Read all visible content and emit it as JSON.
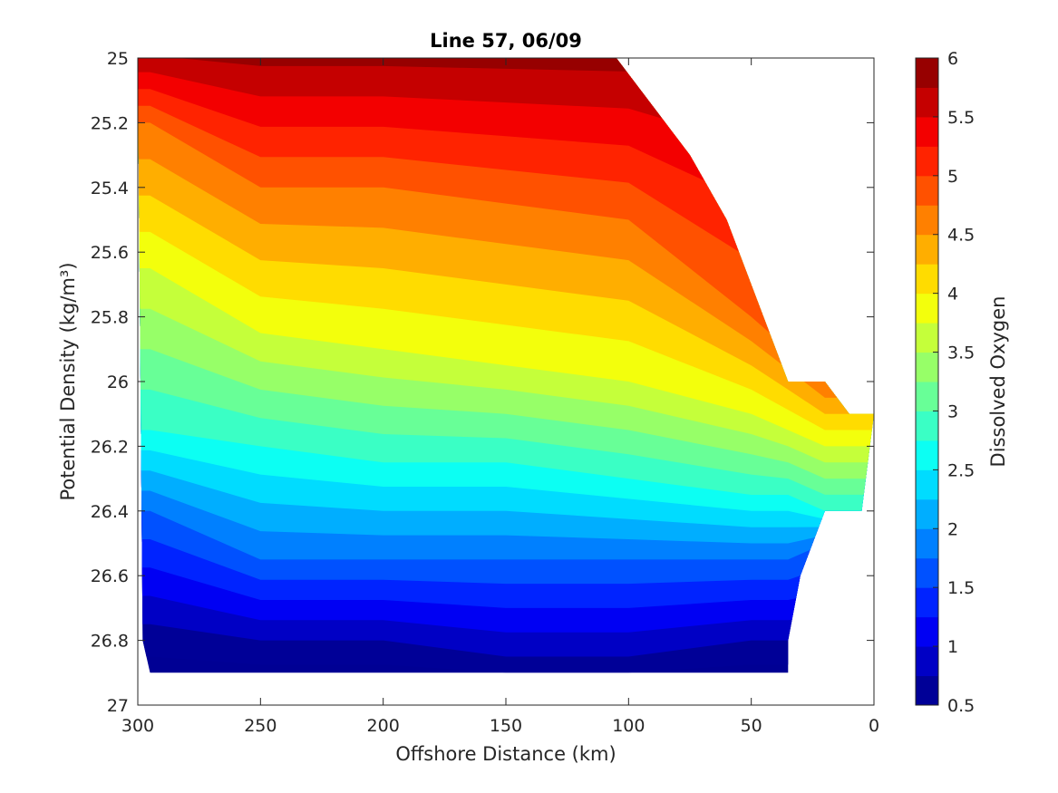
{
  "chart_data": {
    "type": "contourf",
    "title": "Line 57, 06/09",
    "xlabel": "Offshore Distance (km)",
    "ylabel": "Potential Density (kg/m³)",
    "colorbar_label": "Dissolved Oxygen",
    "x_range": [
      300,
      0
    ],
    "x_reversed": true,
    "y_range": [
      25,
      27
    ],
    "y_reversed": true,
    "x_ticks": [
      "300",
      "250",
      "200",
      "150",
      "100",
      "50",
      "0"
    ],
    "y_ticks": [
      "25",
      "25.2",
      "25.4",
      "25.6",
      "25.8",
      "26",
      "26.2",
      "26.4",
      "26.6",
      "26.8",
      "27"
    ],
    "colorbar_range": [
      0.5,
      6
    ],
    "colorbar_ticks": [
      "0.5",
      "1",
      "1.5",
      "2",
      "2.5",
      "3",
      "3.5",
      "4",
      "4.5",
      "5",
      "5.5",
      "6"
    ],
    "colormap": "jet",
    "level_step": 0.25,
    "approx_level_depth_at_distance": {
      "x": [
        295,
        250,
        200,
        150,
        100,
        50,
        35,
        20
      ],
      "depth_of_oxygen_5": [
        25.2,
        25.4,
        25.4,
        25.45,
        25.5,
        25.8,
        25.9,
        26.0
      ],
      "depth_of_oxygen_4": [
        25.65,
        25.85,
        25.9,
        25.95,
        26.0,
        26.1,
        26.15,
        26.2
      ],
      "depth_of_oxygen_3": [
        26.15,
        26.2,
        26.25,
        26.25,
        26.3,
        26.35,
        26.35,
        26.4
      ],
      "depth_of_oxygen_2": [
        26.4,
        26.55,
        26.55,
        26.55,
        26.55,
        26.55,
        26.55,
        26.5
      ],
      "depth_of_oxygen_1": [
        26.75,
        26.8,
        26.8,
        26.85,
        26.85,
        26.8,
        26.8,
        26.8
      ]
    },
    "data_extent": {
      "x": [
        295,
        105,
        75,
        60,
        45,
        35,
        20,
        10,
        0,
        5,
        20,
        30,
        35
      ],
      "top_y": [
        25.0,
        25.0,
        25.3,
        25.5,
        25.8,
        26.0,
        26.0,
        26.1,
        26.1,
        26.4,
        26.4,
        26.6,
        26.8
      ],
      "bottom_y": 26.9
    }
  }
}
